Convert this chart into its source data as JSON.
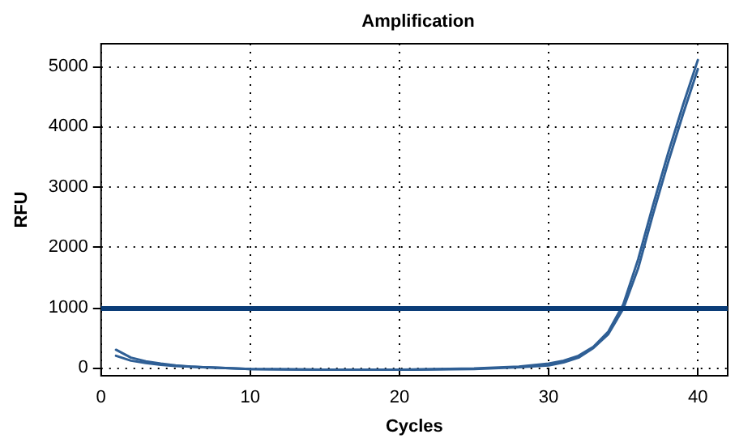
{
  "chart_data": {
    "type": "line",
    "title": "Amplification",
    "xlabel": "Cycles",
    "ylabel": "RFU",
    "xlim": [
      0,
      42
    ],
    "xticks": [
      0,
      10,
      20,
      30,
      40
    ],
    "ylim": [
      -130,
      5370
    ],
    "yticks": [
      0,
      1000,
      2000,
      3000,
      4000,
      5000
    ],
    "grid": true,
    "marker": "none",
    "line_style": "solid",
    "series": [
      {
        "color": "#2f5f95",
        "x": [
          1,
          2,
          3,
          4,
          5,
          6,
          8,
          10,
          15,
          20,
          25,
          28,
          30,
          31,
          32,
          33,
          34,
          35,
          36,
          37,
          38,
          39,
          40
        ],
        "values": [
          300,
          170,
          110,
          70,
          40,
          20,
          0,
          -20,
          -30,
          -30,
          -10,
          20,
          70,
          120,
          200,
          350,
          600,
          1050,
          1800,
          2700,
          3550,
          4350,
          5100
        ]
      },
      {
        "color": "#2f5f95",
        "x": [
          1,
          2,
          3,
          4,
          5,
          6,
          8,
          10,
          15,
          20,
          25,
          28,
          30,
          31,
          32,
          33,
          34,
          35,
          36,
          37,
          38,
          39,
          40
        ],
        "values": [
          200,
          120,
          80,
          50,
          30,
          20,
          0,
          -20,
          -30,
          -30,
          -20,
          10,
          40,
          90,
          170,
          330,
          560,
          980,
          1650,
          2550,
          3400,
          4200,
          4950
        ]
      }
    ],
    "ref_lines": [
      {
        "axis": "y",
        "value": 1000,
        "color": "#0b3d78",
        "line_style": "solid"
      }
    ]
  }
}
